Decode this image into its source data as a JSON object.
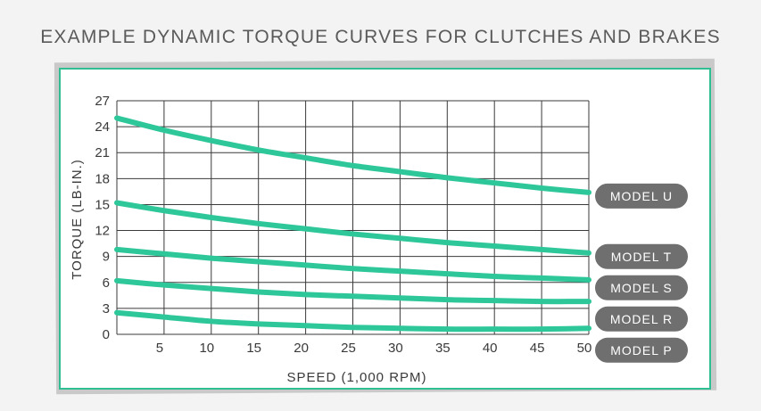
{
  "page": {
    "title": "EXAMPLE DYNAMIC TORQUE CURVES FOR CLUTCHES AND BRAKES"
  },
  "colors": {
    "line": "#2ec79a",
    "grid": "#3a3a3a",
    "pill": "#6f6f6f",
    "border": "#2fbf93"
  },
  "chart_data": {
    "type": "line",
    "title": "EXAMPLE DYNAMIC TORQUE CURVES FOR CLUTCHES AND BRAKES",
    "xlabel": "SPEED (1,000 RPM)",
    "ylabel": "TORQUE (LB-IN.)",
    "xlim": [
      0,
      50
    ],
    "ylim": [
      0,
      27
    ],
    "xticks": [
      5,
      10,
      15,
      20,
      25,
      30,
      35,
      40,
      45,
      50
    ],
    "yticks": [
      0,
      3,
      6,
      9,
      12,
      15,
      18,
      21,
      24,
      27
    ],
    "grid": true,
    "legend": "right, labels at line ends",
    "x": [
      0,
      5,
      10,
      15,
      20,
      25,
      30,
      35,
      40,
      45,
      50
    ],
    "series": [
      {
        "name": "MODEL U",
        "values": [
          25.0,
          23.6,
          22.4,
          21.3,
          20.4,
          19.5,
          18.8,
          18.1,
          17.5,
          16.9,
          16.4
        ]
      },
      {
        "name": "MODEL T",
        "values": [
          15.2,
          14.3,
          13.5,
          12.8,
          12.2,
          11.6,
          11.1,
          10.6,
          10.2,
          9.8,
          9.4
        ]
      },
      {
        "name": "MODEL S",
        "values": [
          9.8,
          9.3,
          8.8,
          8.4,
          8.0,
          7.6,
          7.3,
          7.0,
          6.7,
          6.5,
          6.3
        ]
      },
      {
        "name": "MODEL R",
        "values": [
          6.2,
          5.7,
          5.3,
          4.9,
          4.6,
          4.4,
          4.2,
          4.0,
          3.9,
          3.8,
          3.8
        ]
      },
      {
        "name": "MODEL P",
        "values": [
          2.5,
          2.0,
          1.5,
          1.2,
          1.0,
          0.8,
          0.7,
          0.6,
          0.6,
          0.6,
          0.7
        ]
      }
    ]
  }
}
